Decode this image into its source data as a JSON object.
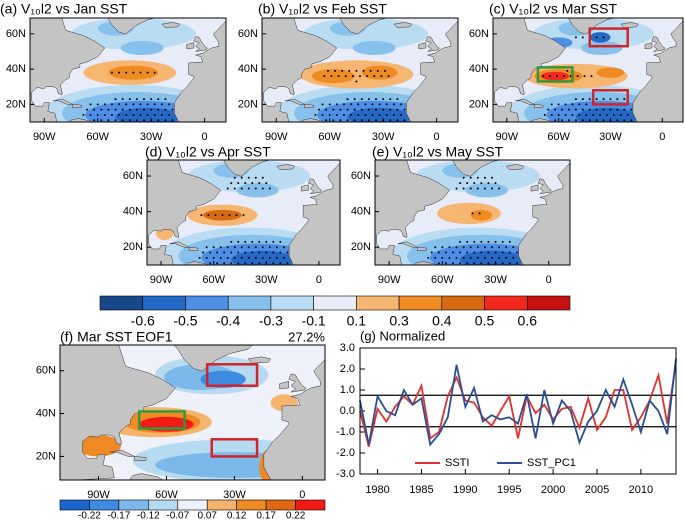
{
  "chart_data": [
    {
      "type": "map",
      "title": "(a) V₁₀l2 vs Jan SST",
      "xlim": [
        -98,
        12
      ],
      "ylim": [
        10,
        69
      ],
      "xticks": [
        {
          "value": -90,
          "label": "90W"
        },
        {
          "value": -60,
          "label": "60W"
        },
        {
          "value": -30,
          "label": "30W"
        },
        0
      ],
      "yticks": [
        {
          "value": 20,
          "label": "20N"
        },
        {
          "value": 40,
          "label": "40N"
        },
        {
          "value": 60,
          "label": "60N"
        }
      ]
    },
    {
      "type": "map",
      "title": "(b) V₁₀l2 vs Feb SST",
      "xlim": [
        -98,
        12
      ],
      "ylim": [
        10,
        69
      ],
      "xticks": [
        {
          "value": -90,
          "label": "90W"
        },
        {
          "value": -60,
          "label": "60W"
        },
        {
          "value": -30,
          "label": "30W"
        },
        0
      ],
      "yticks": [
        {
          "value": 20,
          "label": "20N"
        },
        {
          "value": 40,
          "label": "40N"
        },
        {
          "value": 60,
          "label": "60N"
        }
      ]
    },
    {
      "type": "map",
      "title": "(c) V₁₀l2 vs Mar SST",
      "xlim": [
        -98,
        12
      ],
      "ylim": [
        10,
        69
      ],
      "xticks": [
        {
          "value": -90,
          "label": "90W"
        },
        {
          "value": -60,
          "label": "60W"
        },
        {
          "value": -30,
          "label": "30W"
        },
        0
      ],
      "yticks": [
        {
          "value": 20,
          "label": "20N"
        },
        {
          "value": 40,
          "label": "40N"
        },
        {
          "value": 60,
          "label": "60N"
        }
      ]
    },
    {
      "type": "map",
      "title": "(d) V₁₀l2 vs Apr SST",
      "xlim": [
        -98,
        12
      ],
      "ylim": [
        10,
        69
      ],
      "xticks": [
        {
          "value": -90,
          "label": "90W"
        },
        {
          "value": -60,
          "label": "60W"
        },
        {
          "value": -30,
          "label": "30W"
        },
        0
      ],
      "yticks": [
        {
          "value": 20,
          "label": "20N"
        },
        {
          "value": 40,
          "label": "40N"
        },
        {
          "value": 60,
          "label": "60N"
        }
      ]
    },
    {
      "type": "map",
      "title": "(e) V₁₀l2 vs May SST",
      "xlim": [
        -98,
        12
      ],
      "ylim": [
        10,
        69
      ],
      "xticks": [
        {
          "value": -90,
          "label": "90W"
        },
        {
          "value": -60,
          "label": "60W"
        },
        {
          "value": -30,
          "label": "30W"
        },
        0
      ],
      "yticks": [
        {
          "value": 20,
          "label": "20N"
        },
        {
          "value": 40,
          "label": "40N"
        },
        {
          "value": 60,
          "label": "60N"
        }
      ]
    },
    {
      "type": "colorbar",
      "levels": [
        -0.6,
        -0.5,
        -0.4,
        -0.3,
        -0.1,
        0.1,
        0.3,
        0.4,
        0.5,
        0.6
      ],
      "colors": [
        "#16488a",
        "#2469c7",
        "#4d8fe6",
        "#88c0ec",
        "#b9dcf2",
        "#e8ebf8",
        "#f6b672",
        "#ee8b22",
        "#d56a12",
        "#f22a1e",
        "#c4100e"
      ]
    },
    {
      "type": "map",
      "title": "(f) Mar SST EOF1",
      "note": "27.2%",
      "xlim": [
        -107,
        10
      ],
      "ylim": [
        9,
        72
      ],
      "xticks": [
        {
          "value": -90,
          "label": "90W"
        },
        {
          "value": -60,
          "label": "60W"
        },
        {
          "value": -30,
          "label": "30W"
        },
        0
      ],
      "yticks": [
        {
          "value": 20,
          "label": "20N"
        },
        {
          "value": 40,
          "label": "40N"
        },
        {
          "value": 60,
          "label": "60N"
        }
      ]
    },
    {
      "type": "colorbar",
      "levels": [
        -0.22,
        -0.17,
        -0.12,
        -0.07,
        0.07,
        0.12,
        0.17,
        0.22
      ],
      "colors": [
        "#1a66cf",
        "#3f8be2",
        "#7db8ea",
        "#b6daf1",
        "#eef0fa",
        "#f5b46c",
        "#f08a22",
        "#df6a12",
        "#f21a16"
      ]
    },
    {
      "type": "line",
      "title": "(g) Normalized",
      "x": [
        1978,
        1979,
        1980,
        1981,
        1982,
        1983,
        1984,
        1985,
        1986,
        1987,
        1988,
        1989,
        1990,
        1991,
        1992,
        1993,
        1994,
        1995,
        1996,
        1997,
        1998,
        1999,
        2000,
        2001,
        2002,
        2003,
        2004,
        2005,
        2006,
        2007,
        2008,
        2009,
        2010,
        2011,
        2012,
        2013,
        2014
      ],
      "xlim": [
        1978,
        2014
      ],
      "xticks": [
        1980,
        1985,
        1990,
        1995,
        2000,
        2005,
        2010
      ],
      "ylim": [
        -3,
        3
      ],
      "yticks": [
        {
          "value": -3,
          "label": "-3.0"
        },
        {
          "value": -2,
          "label": "-2.0"
        },
        {
          "value": -1,
          "label": "-1.0"
        },
        {
          "value": 0,
          "label": "0.0"
        },
        {
          "value": 1,
          "label": "1.0"
        },
        {
          "value": 2,
          "label": "2.0"
        },
        {
          "value": 3,
          "label": "3.0"
        }
      ],
      "hlines": [
        0.75,
        -0.75
      ],
      "legend": "lower left",
      "series": [
        {
          "name": "SSTI",
          "color": "#e0322e",
          "values": [
            0.0,
            -1.7,
            0.1,
            -0.5,
            0.2,
            0.7,
            0.3,
            1.2,
            -1.3,
            -1.0,
            0.7,
            1.6,
            0.5,
            0.4,
            -0.3,
            -0.7,
            0.0,
            0.7,
            -1.3,
            0.7,
            -0.1,
            0.3,
            -0.4,
            0.1,
            0.2,
            -0.8,
            0.6,
            -0.9,
            -0.3,
            1.0,
            1.0,
            -0.9,
            -0.3,
            0.5,
            1.7,
            -0.6,
            2.4
          ]
        },
        {
          "name": "SST_PC1",
          "color": "#2a4f96",
          "values": [
            0.5,
            -1.6,
            0.7,
            0.0,
            -0.2,
            1.0,
            0.3,
            0.6,
            -1.6,
            -1.1,
            -0.3,
            2.2,
            0.2,
            1.1,
            -0.5,
            -0.2,
            -0.4,
            -0.3,
            -0.6,
            0.8,
            -1.3,
            1.0,
            -0.6,
            0.5,
            0.0,
            -1.5,
            -0.5,
            0.0,
            1.0,
            0.2,
            1.5,
            0.3,
            -1.0,
            0.5,
            0.0,
            -1.1,
            2.5
          ]
        }
      ]
    }
  ]
}
